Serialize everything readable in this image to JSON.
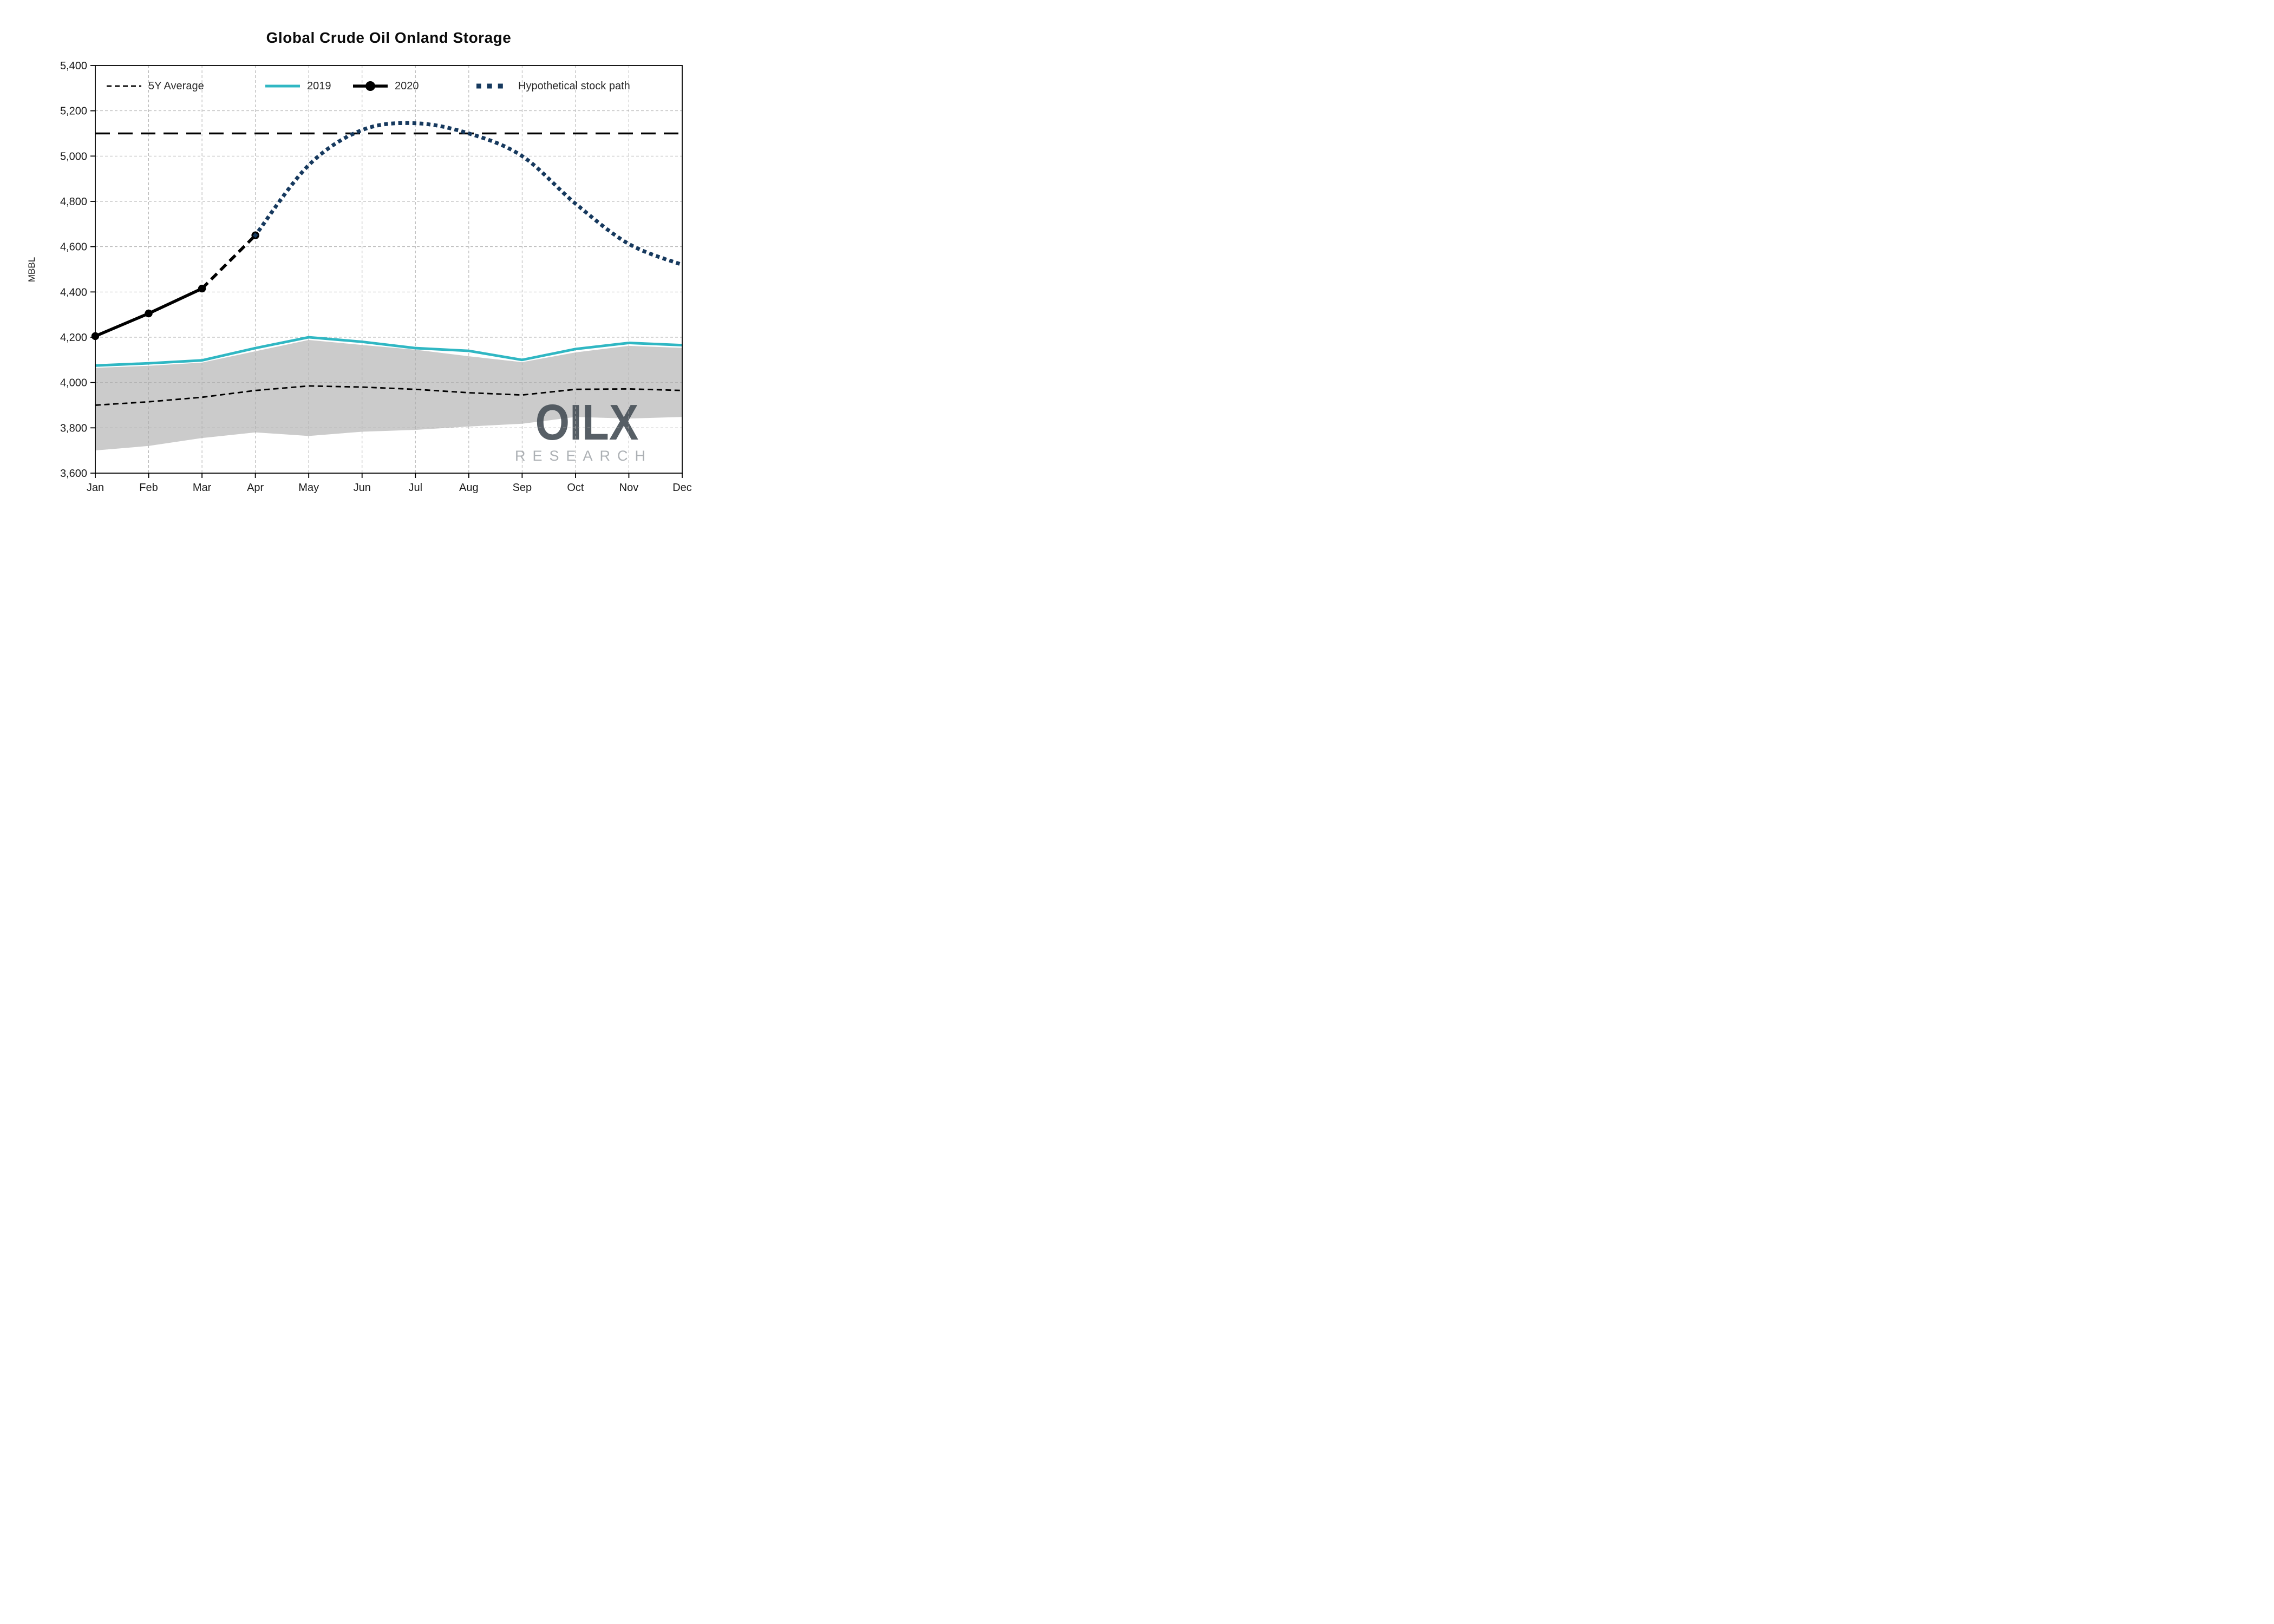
{
  "title": "Global Crude Oil Onland Storage",
  "watermark": {
    "line1": "OILX",
    "line2": "RESEARCH"
  },
  "colors": {
    "teal_2019": "#30b7c3",
    "navy_hypothetical": "#16395e",
    "black_lines": "#000000",
    "band_gray": "#cbcbcb",
    "grid_gray": "#aeaeae",
    "logo_dark": "#49525a",
    "logo_light": "#a8acb0"
  },
  "chart_data": {
    "type": "line",
    "title": "Global Crude Oil Onland Storage",
    "xlabel": "",
    "ylabel": "MBBL",
    "ylim": [
      3600,
      5400
    ],
    "ytick_step": 200,
    "ytick_labels": [
      "3,600",
      "3,800",
      "4,000",
      "4,200",
      "4,400",
      "4,600",
      "4,800",
      "5,000",
      "5,200",
      "5,400"
    ],
    "grid": true,
    "legend_position": "top",
    "categories": [
      "Jan",
      "Feb",
      "Mar",
      "Apr",
      "May",
      "Jun",
      "Jul",
      "Aug",
      "Sep",
      "Oct",
      "Nov",
      "Dec"
    ],
    "reference_line": {
      "value": 5100,
      "color": "#000000",
      "style": "thick-dashed"
    },
    "band": {
      "name": "5Y Range",
      "color": "#cbcbcb",
      "upper": [
        4065,
        4074,
        4088,
        4138,
        4188,
        4166,
        4145,
        4116,
        4090,
        4133,
        4162,
        4153
      ],
      "lower": [
        3700,
        3720,
        3755,
        3780,
        3764,
        3783,
        3791,
        3806,
        3818,
        3848,
        3841,
        3848
      ]
    },
    "series": [
      {
        "name": "5Y Average",
        "color": "#000000",
        "style": "dashed",
        "width": 2.8,
        "values": [
          3900,
          3915,
          3935,
          3965,
          3985,
          3980,
          3970,
          3955,
          3945,
          3970,
          3972,
          3965
        ]
      },
      {
        "name": "2019",
        "color": "#30b7c3",
        "style": "solid",
        "width": 4.8,
        "values": [
          4075,
          4085,
          4098,
          4152,
          4200,
          4180,
          4152,
          4140,
          4100,
          4148,
          4175,
          4165
        ]
      },
      {
        "name": "2020",
        "color": "#000000",
        "style": "solid-then-dashed",
        "dashed_from_index": 2,
        "width": 5.6,
        "marker": "circle",
        "values": [
          4205,
          4305,
          4415,
          4650,
          null,
          null,
          null,
          null,
          null,
          null,
          null,
          null
        ]
      },
      {
        "name": "Hypothetical stock path",
        "color": "#16395e",
        "style": "dotted",
        "width": 7,
        "smooth": true,
        "values": [
          null,
          null,
          null,
          4650,
          4960,
          5115,
          5145,
          5100,
          5000,
          4790,
          4612,
          4520
        ]
      }
    ]
  }
}
